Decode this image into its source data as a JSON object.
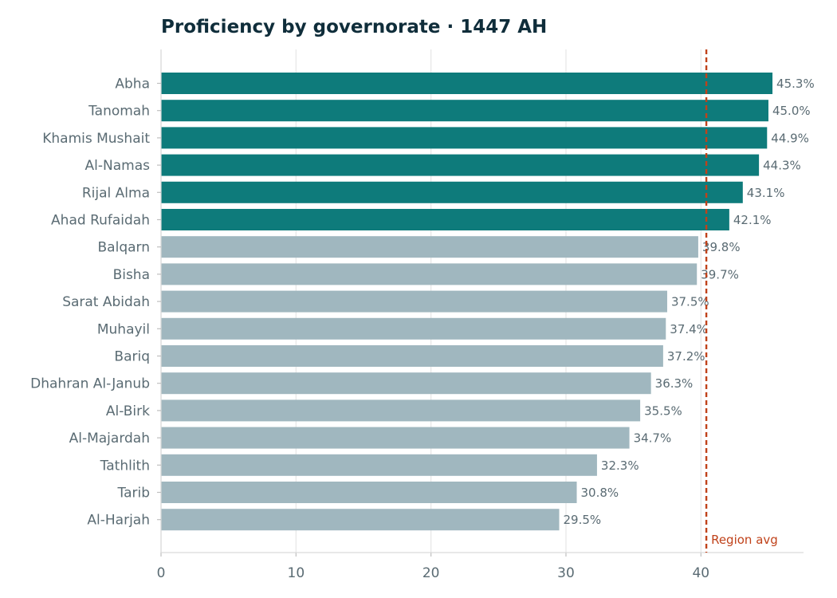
{
  "chart_data": {
    "type": "bar",
    "orientation": "horizontal",
    "title": "Proficiency by governorate · 1447 AH",
    "xlabel": "",
    "ylabel": "",
    "xlim": [
      0,
      47.6
    ],
    "x_ticks": [
      0,
      10,
      20,
      30,
      40
    ],
    "grid": "vertical",
    "value_format": "percent, one decimal",
    "categories": [
      "Abha",
      "Tanomah",
      "Khamis Mushait",
      "Al-Namas",
      "Rijal Alma",
      "Ahad Rufaidah",
      "Balqarn",
      "Bisha",
      "Sarat Abidah",
      "Muhayil",
      "Bariq",
      "Dhahran Al-Janub",
      "Al-Birk",
      "Al-Majardah",
      "Tathlith",
      "Tarib",
      "Al-Harjah"
    ],
    "values": [
      45.3,
      45.0,
      44.9,
      44.3,
      43.1,
      42.1,
      39.8,
      39.7,
      37.5,
      37.4,
      37.2,
      36.3,
      35.5,
      34.7,
      32.3,
      30.8,
      29.5
    ],
    "value_labels": [
      "45.3%",
      "45.0%",
      "44.9%",
      "44.3%",
      "43.1%",
      "42.1%",
      "39.8%",
      "39.7%",
      "37.5%",
      "37.4%",
      "37.2%",
      "36.3%",
      "35.5%",
      "34.7%",
      "32.3%",
      "30.8%",
      "29.5%"
    ],
    "reference_line": {
      "label": "Region avg",
      "value": 40.4,
      "style": "dashed"
    },
    "colors": {
      "above_average": "#0e7b7b",
      "below_average": "#a0b7bf",
      "reference": "#c0421a",
      "title": "#0f2d3a",
      "text": "#5a6b73",
      "grid": "#e6e6e6"
    }
  }
}
